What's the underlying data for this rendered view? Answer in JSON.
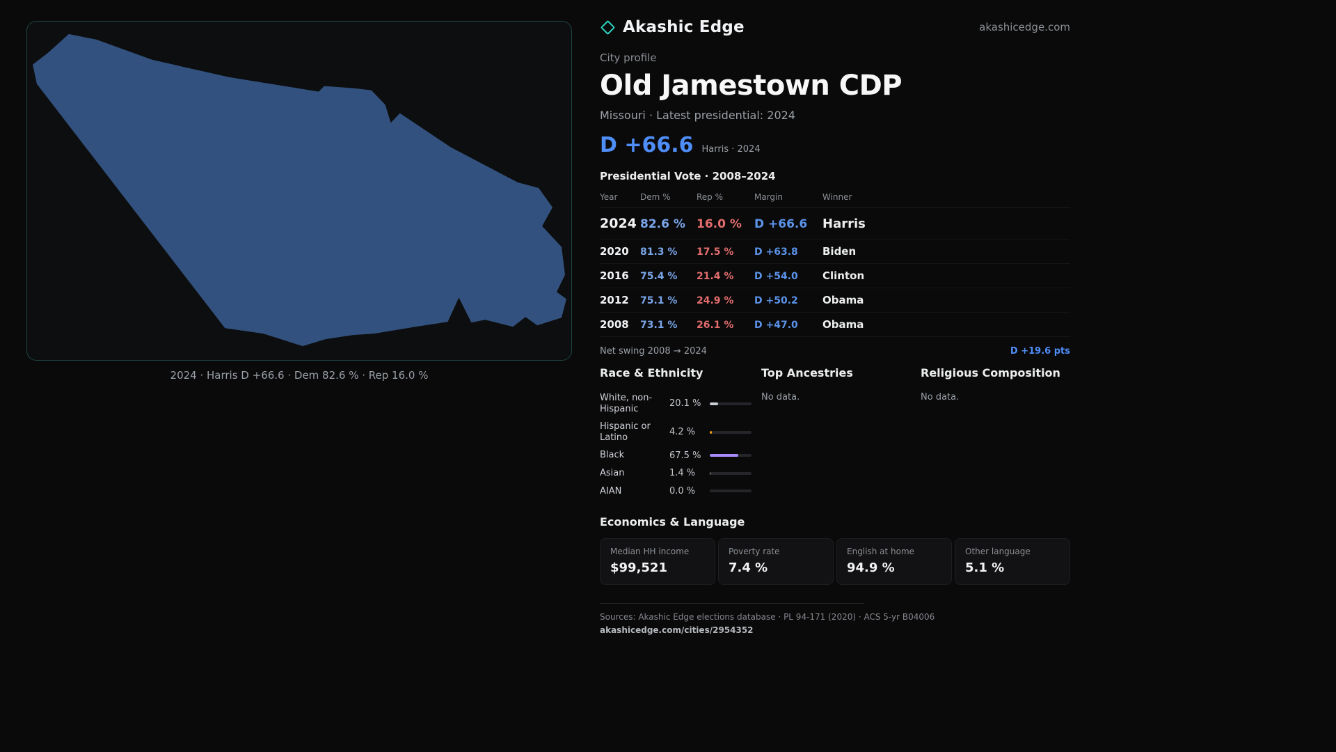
{
  "brand": {
    "name": "Akashic Edge",
    "domain": "akashicedge.com",
    "accent": "#2dd4bf"
  },
  "map": {
    "caption": "2024 · Harris D +66.6 · Dem 82.6 % · Rep 16.0 %",
    "shape_color": "#33517e"
  },
  "profile": {
    "kicker": "City profile",
    "title": "Old Jamestown CDP",
    "subtitle": "Missouri · Latest presidential: 2024",
    "headline_margin": "D +66.6",
    "headline_note": "Harris · 2024"
  },
  "vote_table": {
    "title": "Presidential Vote · 2008–2024",
    "columns": [
      "Year",
      "Dem %",
      "Rep %",
      "Margin",
      "Winner"
    ],
    "rows": [
      {
        "year": "2024",
        "dem": "82.6 %",
        "rep": "16.0 %",
        "margin": "D +66.6",
        "winner": "Harris"
      },
      {
        "year": "2020",
        "dem": "81.3 %",
        "rep": "17.5 %",
        "margin": "D +63.8",
        "winner": "Biden"
      },
      {
        "year": "2016",
        "dem": "75.4 %",
        "rep": "21.4 %",
        "margin": "D +54.0",
        "winner": "Clinton"
      },
      {
        "year": "2012",
        "dem": "75.1 %",
        "rep": "24.9 %",
        "margin": "D +50.2",
        "winner": "Obama"
      },
      {
        "year": "2008",
        "dem": "73.1 %",
        "rep": "26.1 %",
        "margin": "D +47.0",
        "winner": "Obama"
      }
    ],
    "net_swing_label": "Net swing 2008 → 2024",
    "net_swing_value": "D +19.6 pts",
    "dem_color": "#7ba6ea",
    "rep_color": "#e36d6d",
    "margin_color": "#5b93e8"
  },
  "race": {
    "title": "Race & Ethnicity",
    "rows": [
      {
        "label": "White, non-Hispanic",
        "value": "20.1 %",
        "pct": 20.1,
        "color": "#c8cdd6"
      },
      {
        "label": "Hispanic or Latino",
        "value": "4.2 %",
        "pct": 4.2,
        "color": "#f59e0b"
      },
      {
        "label": "Black",
        "value": "67.5 %",
        "pct": 67.5,
        "color": "#a78bfa"
      },
      {
        "label": "Asian",
        "value": "1.4 %",
        "pct": 1.4,
        "color": "#c8cdd6"
      },
      {
        "label": "AIAN",
        "value": "0.0 %",
        "pct": 0.0,
        "color": "#c8cdd6"
      }
    ]
  },
  "ancestries": {
    "title": "Top Ancestries",
    "empty": "No data."
  },
  "religion": {
    "title": "Religious Composition",
    "empty": "No data."
  },
  "economics": {
    "title": "Economics & Language",
    "stats": [
      {
        "label": "Median HH income",
        "value": "$99,521"
      },
      {
        "label": "Poverty rate",
        "value": "7.4 %"
      },
      {
        "label": "English at home",
        "value": "94.9 %"
      },
      {
        "label": "Other language",
        "value": "5.1 %"
      }
    ]
  },
  "footer": {
    "sources": "Sources: Akashic Edge elections database · PL 94-171 (2020) · ACS 5-yr B04006",
    "permalink": "akashicedge.com/cities/2954352"
  }
}
